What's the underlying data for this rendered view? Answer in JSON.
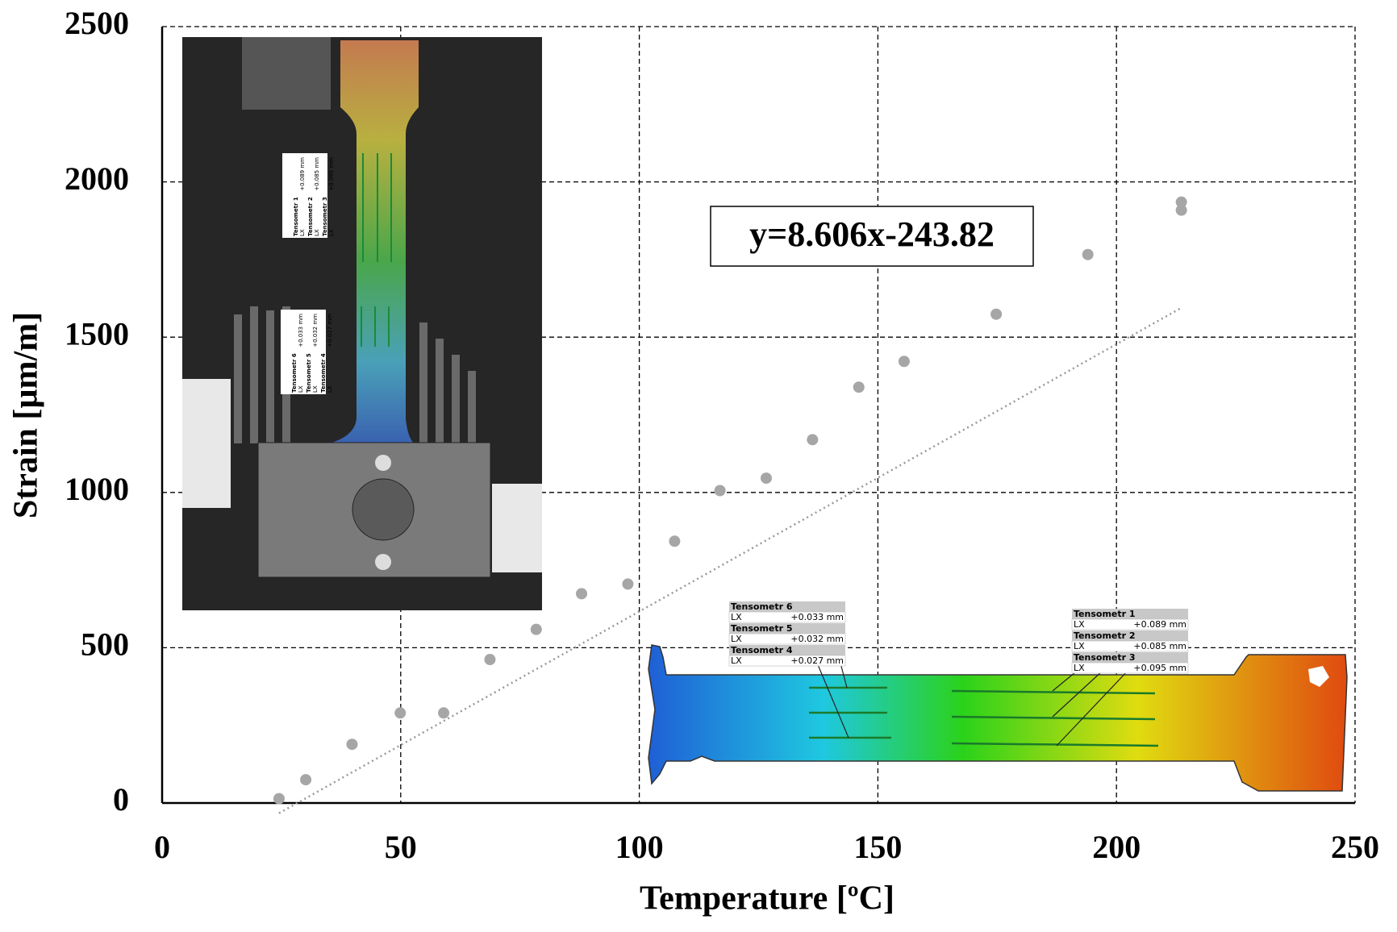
{
  "chart_data": {
    "type": "scatter",
    "x_label": "Temperature [ºC]",
    "y_label": "Strain [µm/m]",
    "equation": "y=8.606x-243.82",
    "trendline": {
      "slope": 8.606,
      "intercept": -243.82
    },
    "x": [
      24.5,
      30.1,
      39.8,
      49.9,
      59.0,
      68.7,
      78.4,
      87.9,
      97.6,
      107.4,
      116.9,
      126.6,
      136.3,
      146.0,
      155.5,
      174.8,
      194.0,
      213.6,
      213.6
    ],
    "values": [
      14,
      75,
      189,
      290,
      290,
      462,
      559,
      674,
      705,
      843,
      1006,
      1046,
      1170,
      1339,
      1422,
      1574,
      1766,
      1935,
      1909
    ],
    "color": "#a6a6a6",
    "xlim": [
      0,
      250
    ],
    "xticks": [
      0,
      50,
      100,
      150,
      200,
      250
    ],
    "ylim": [
      0,
      2500
    ],
    "yticks": [
      0,
      500,
      1000,
      1500,
      2000,
      2500
    ],
    "grid": true,
    "tensometers_left": [
      {
        "name": "Tensometr 6",
        "axis": "LX",
        "value": "+0.033 mm"
      },
      {
        "name": "Tensometr 5",
        "axis": "LX",
        "value": "+0.032 mm"
      },
      {
        "name": "Tensometr 4",
        "axis": "LX",
        "value": "+0.027 mm"
      }
    ],
    "tensometers_right": [
      {
        "name": "Tensometr 1",
        "axis": "LX",
        "value": "+0.089 mm"
      },
      {
        "name": "Tensometr 2",
        "axis": "LX",
        "value": "+0.085 mm"
      },
      {
        "name": "Tensometr 3",
        "axis": "LX",
        "value": "+0.095 mm"
      }
    ]
  }
}
